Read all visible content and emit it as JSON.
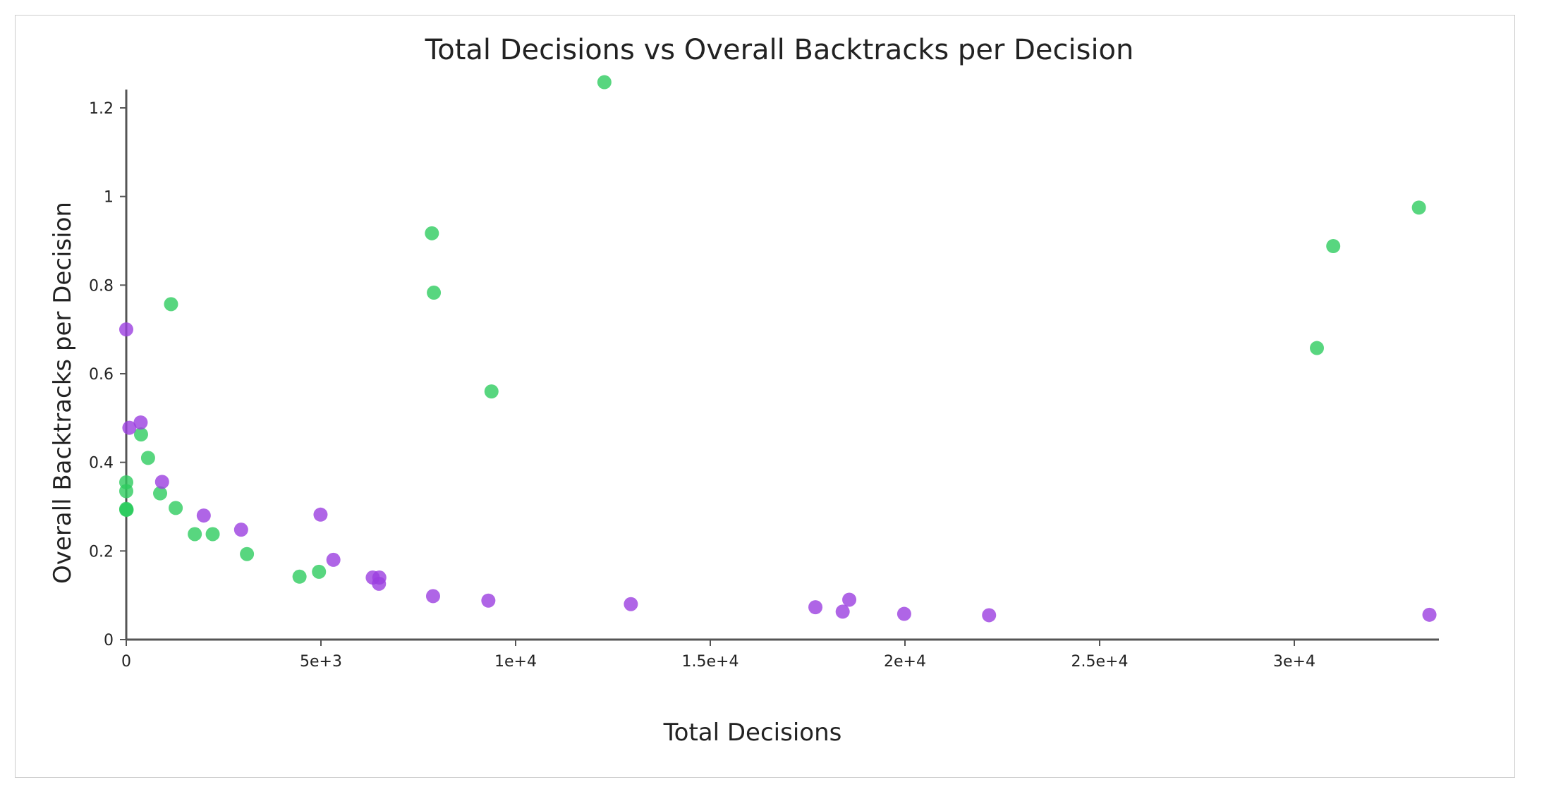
{
  "colors": {
    "green_series": "#2ecc5f",
    "purple_series": "#9b3ee0",
    "frame_border": "#cccccc",
    "axis": "#555555",
    "text": "#222222"
  },
  "chart_data": {
    "type": "scatter",
    "title": "Total Decisions vs Overall Backtracks per Decision",
    "xlabel": "Total Decisions",
    "ylabel": "Overall Backtracks per Decision",
    "xlim": [
      0,
      33500
    ],
    "ylim": [
      0,
      1.26
    ],
    "x_ticks": [
      0,
      5000,
      10000,
      15000,
      20000,
      25000,
      30000
    ],
    "x_tick_labels": [
      "0",
      "5e+3",
      "1e+4",
      "1.5e+4",
      "2e+4",
      "2.5e+4",
      "3e+4"
    ],
    "y_ticks": [
      0,
      0.2,
      0.4,
      0.6,
      0.8,
      1.0,
      1.2
    ],
    "y_tick_labels": [
      "0",
      "0.2",
      "0.4",
      "0.6",
      "0.8",
      "1",
      "1.2"
    ],
    "grid": false,
    "legend": "none",
    "series": [
      {
        "color": "#2ecc5f",
        "points": [
          [
            0,
            0.355
          ],
          [
            0,
            0.335
          ],
          [
            0,
            0.295
          ],
          [
            0,
            0.293
          ],
          [
            10,
            0.293
          ],
          [
            1150,
            0.757
          ],
          [
            380,
            0.463
          ],
          [
            560,
            0.41
          ],
          [
            870,
            0.33
          ],
          [
            1270,
            0.297
          ],
          [
            1760,
            0.238
          ],
          [
            2220,
            0.238
          ],
          [
            3100,
            0.193
          ],
          [
            4450,
            0.142
          ],
          [
            4950,
            0.153
          ],
          [
            7850,
            0.917
          ],
          [
            7900,
            0.783
          ],
          [
            9380,
            0.56
          ],
          [
            12280,
            1.258
          ],
          [
            30580,
            0.658
          ],
          [
            31000,
            0.888
          ],
          [
            33200,
            0.975
          ]
        ]
      },
      {
        "color": "#9b3ee0",
        "points": [
          [
            0,
            0.7
          ],
          [
            80,
            0.478
          ],
          [
            370,
            0.49
          ],
          [
            920,
            0.356
          ],
          [
            1990,
            0.28
          ],
          [
            2950,
            0.248
          ],
          [
            4990,
            0.282
          ],
          [
            5320,
            0.18
          ],
          [
            6330,
            0.14
          ],
          [
            6490,
            0.126
          ],
          [
            6500,
            0.14
          ],
          [
            7880,
            0.098
          ],
          [
            9300,
            0.088
          ],
          [
            12960,
            0.08
          ],
          [
            17700,
            0.073
          ],
          [
            18400,
            0.063
          ],
          [
            18570,
            0.09
          ],
          [
            19980,
            0.058
          ],
          [
            22160,
            0.055
          ],
          [
            33470,
            0.056
          ]
        ]
      }
    ]
  }
}
